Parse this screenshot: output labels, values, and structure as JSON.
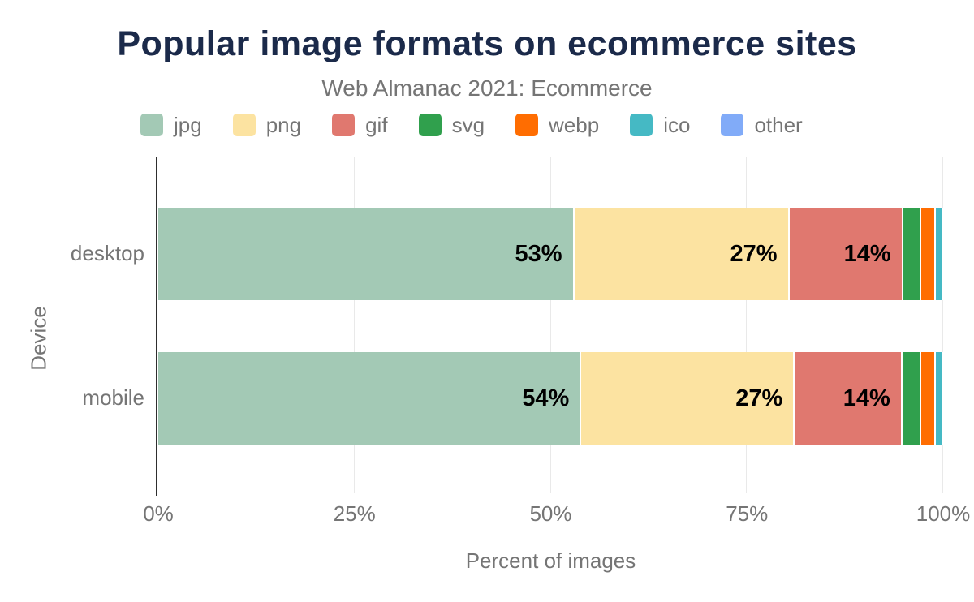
{
  "chart_data": {
    "type": "bar",
    "orientation": "horizontal",
    "stacked": true,
    "title": "Popular image formats on ecommerce sites",
    "subtitle": "Web Almanac 2021: Ecommerce",
    "xlabel": "Percent of images",
    "ylabel": "Device",
    "xlim": [
      0,
      100
    ],
    "xticks": [
      "0%",
      "25%",
      "50%",
      "75%",
      "100%"
    ],
    "xtick_values": [
      0,
      25,
      50,
      75,
      100
    ],
    "grid": "vertical",
    "legend_position": "top",
    "categories": [
      "desktop",
      "mobile"
    ],
    "series": [
      {
        "name": "jpg",
        "color": "#a3c9b5",
        "values": [
          52.8,
          53.7
        ],
        "labels": [
          "53%",
          "54%"
        ]
      },
      {
        "name": "png",
        "color": "#fce3a1",
        "values": [
          27.4,
          27.2
        ],
        "labels": [
          "27%",
          "27%"
        ]
      },
      {
        "name": "gif",
        "color": "#e0786f",
        "values": [
          14.5,
          13.7
        ],
        "labels": [
          "14%",
          "14%"
        ]
      },
      {
        "name": "svg",
        "color": "#30a04d",
        "values": [
          2.3,
          2.4
        ],
        "labels": [
          "",
          ""
        ]
      },
      {
        "name": "webp",
        "color": "#ff6d01",
        "values": [
          1.9,
          1.9
        ],
        "labels": [
          "",
          ""
        ]
      },
      {
        "name": "ico",
        "color": "#45b9c4",
        "values": [
          1.0,
          1.0
        ],
        "labels": [
          "",
          ""
        ]
      },
      {
        "name": "other",
        "color": "#81abf8",
        "values": [
          0.1,
          0.1
        ],
        "labels": [
          "",
          ""
        ]
      }
    ],
    "style": {
      "title_color": "#1b2a4a",
      "text_color": "#757575",
      "axis_line_color": "#2e2e2e",
      "gridline_color": "#e9e9e9",
      "background": "#ffffff",
      "value_label_color": "#000000"
    }
  }
}
